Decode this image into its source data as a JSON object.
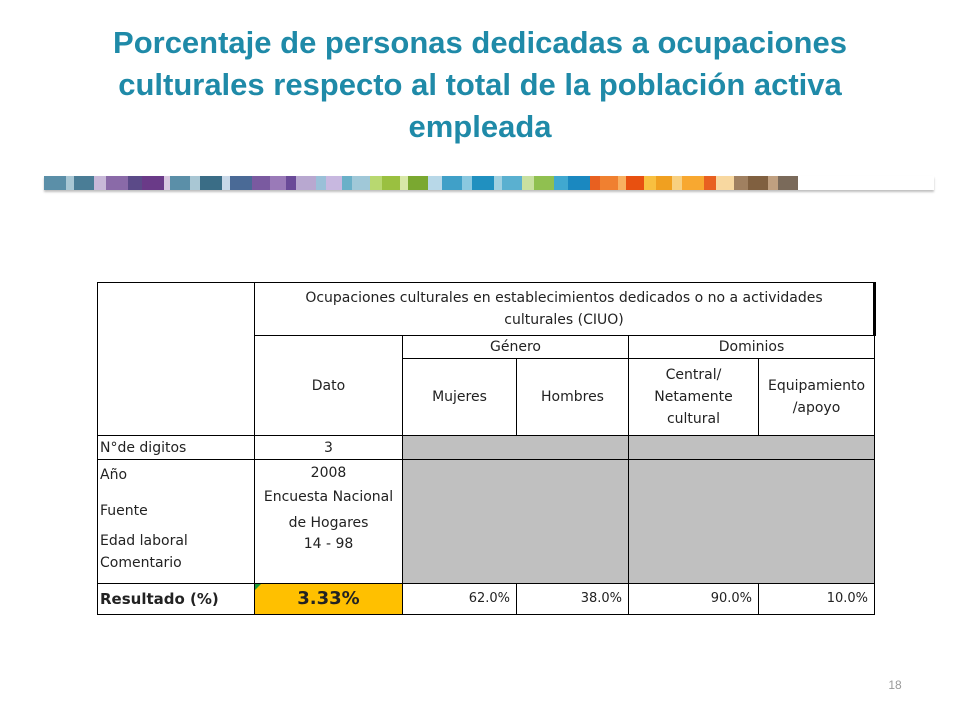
{
  "title": {
    "line1": "Porcentaje de personas dedicadas a ocupaciones",
    "line2": "culturales respecto al total de la población activa",
    "line3": "empleada"
  },
  "table": {
    "header_main": "Ocupaciones culturales en establecimientos dedicados o no a actividades culturales (CIUO)",
    "genero": "Género",
    "dominios": "Dominios",
    "dato": "Dato",
    "mujeres": "Mujeres",
    "hombres": "Hombres",
    "central": "Central/ Netamente cultural",
    "equipamiento": "Equipamiento /apoyo",
    "rows": {
      "digitos_label": "N°de digitos",
      "digitos_value": "3",
      "anio_label": "Año",
      "fuente_label": "Fuente",
      "edad_label": "Edad laboral",
      "comentario_label": "Comentario",
      "anio_value": "2008",
      "fuente_value": "Encuesta Nacional de Hogares",
      "edad_value": "14 - 98",
      "resultado_label": "Resultado (%)",
      "resultado_value": "3.33%",
      "mujeres_value": "62.0%",
      "hombres_value": "38.0%",
      "central_value": "90.0%",
      "equipamiento_value": "10.0%"
    }
  },
  "page_number": "18",
  "colors": {
    "title": "#1f8aa8",
    "highlight": "#ffc000",
    "gray_cell": "#c0c0c0"
  }
}
